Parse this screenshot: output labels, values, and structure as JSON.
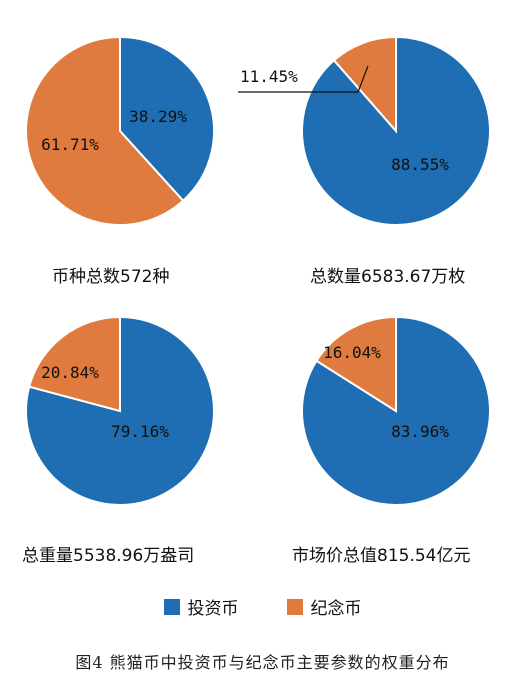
{
  "chart_data": [
    {
      "type": "pie",
      "title": "币种总数572种",
      "categories": [
        "投资币",
        "纪念币"
      ],
      "values": [
        38.29,
        61.71
      ],
      "labels": [
        "38.29%",
        "61.71%"
      ]
    },
    {
      "type": "pie",
      "title": "总数量6583.67万枚",
      "categories": [
        "投资币",
        "纪念币"
      ],
      "values": [
        88.55,
        11.45
      ],
      "labels": [
        "88.55%",
        "11.45%"
      ]
    },
    {
      "type": "pie",
      "title": "总重量5538.96万盎司",
      "categories": [
        "投资币",
        "纪念币"
      ],
      "values": [
        79.16,
        20.84
      ],
      "labels": [
        "79.16%",
        "20.84%"
      ]
    },
    {
      "type": "pie",
      "title": "市场价总值815.54亿元",
      "categories": [
        "投资币",
        "纪念币"
      ],
      "values": [
        83.96,
        16.04
      ],
      "labels": [
        "83.96%",
        "16.04%"
      ]
    }
  ],
  "legend": {
    "items": [
      {
        "label": "投资币",
        "color": "#1f6db2"
      },
      {
        "label": "纪念币",
        "color": "#e07b3f"
      }
    ]
  },
  "figure_title": "图4 熊猫币中投资币与纪念币主要参数的权重分布"
}
